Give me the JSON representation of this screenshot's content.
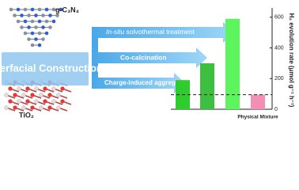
{
  "chart_data": {
    "type": "bar",
    "y_label": "H₂ evolution rate (μmol g⁻¹ h⁻¹)",
    "categories": [
      null,
      null,
      null,
      "Physical Mixture"
    ],
    "values": [
      190,
      300,
      590,
      95
    ],
    "colors": [
      "#2ecc2e",
      "#3fbf3f",
      "#5df55d",
      "#f38fb4"
    ],
    "ylim": [
      0,
      640
    ],
    "yticks": [
      0,
      200,
      400,
      600
    ],
    "reference_line": "dashed at Physical Mixture level"
  },
  "diagram": {
    "top_material": "g-C₃N₄",
    "bottom_material": "TiO₂",
    "center": "Interfacial Construction",
    "arrows": [
      {
        "italic": "In-situ",
        "text": " solvothermal treatment"
      },
      {
        "text": "Co-calcination"
      },
      {
        "text": "Charge-induced aggregation"
      }
    ]
  }
}
